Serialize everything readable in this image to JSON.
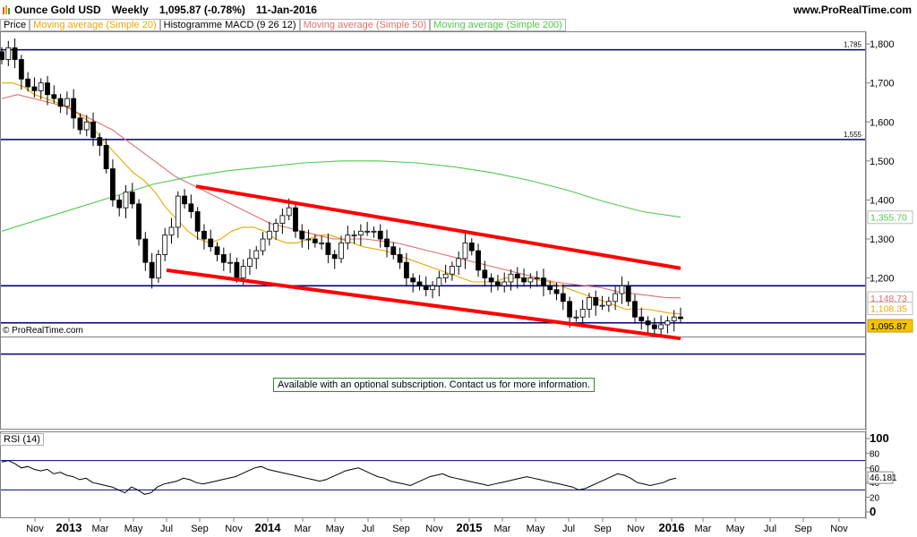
{
  "header": {
    "instrument": "Ounce Gold USD",
    "period": "Weekly",
    "price_change": "1,095.87 (-0.78%)",
    "date": "11-Jan-2016",
    "site": "www.ProRealTime.com"
  },
  "legend": [
    {
      "label": "Price",
      "color": "#000000"
    },
    {
      "label": "Moving average (Simple 20)",
      "color": "#e8a800"
    },
    {
      "label": "Histogramme MACD (9 26 12)",
      "color": "#000000"
    },
    {
      "label": "Moving average (Simple 50)",
      "color": "#d9716f"
    },
    {
      "label": "Moving average (Simple 200)",
      "color": "#4fc84f"
    }
  ],
  "copyright": "© ProRealTime.com",
  "subscription_note": "Available with an optional subscription. Contact us for more information.",
  "rsi_label": "RSI (14)",
  "price_badges": {
    "ma200": "1,355.70",
    "ma50": "1,148.73",
    "ma20": "1,108.35",
    "last": "1,095.87"
  },
  "level_labels": [
    "1,785",
    "1,555"
  ],
  "rsi_value_label": "46.181",
  "chart_data": [
    {
      "type": "candlestick",
      "ylim": [
        1050,
        1830
      ],
      "y_ticks": [
        "1,800",
        "1,700",
        "1,600",
        "1,500",
        "1,400",
        "1,300",
        "1,200"
      ],
      "x_ticks": [
        "Nov",
        "2013",
        "Mar",
        "May",
        "Jul",
        "Sep",
        "Nov",
        "2014",
        "Mar",
        "May",
        "Jul",
        "Sep",
        "Nov",
        "2015",
        "Mar",
        "May",
        "Jul",
        "Sep",
        "Nov",
        "2016",
        "Mar",
        "May",
        "Jul",
        "Sep",
        "Nov"
      ],
      "horizontal_levels": [
        1785,
        1555,
        1180,
        1085,
        1005
      ],
      "channel": {
        "upper": [
          [
            "2013-08",
            1435
          ],
          [
            "2016-01",
            1225
          ]
        ],
        "lower": [
          [
            "2013-07",
            1220
          ],
          [
            "2016-01",
            1045
          ]
        ]
      },
      "close": [
        1760,
        1790,
        1760,
        1710,
        1690,
        1680,
        1700,
        1670,
        1660,
        1640,
        1660,
        1610,
        1580,
        1600,
        1560,
        1540,
        1480,
        1400,
        1380,
        1420,
        1390,
        1300,
        1240,
        1200,
        1260,
        1310,
        1330,
        1410,
        1390,
        1370,
        1320,
        1300,
        1280,
        1260,
        1240,
        1240,
        1200,
        1230,
        1250,
        1270,
        1300,
        1320,
        1340,
        1360,
        1380,
        1320,
        1300,
        1300,
        1290,
        1290,
        1260,
        1250,
        1290,
        1310,
        1310,
        1320,
        1320,
        1320,
        1300,
        1280,
        1260,
        1240,
        1200,
        1190,
        1180,
        1170,
        1180,
        1200,
        1210,
        1230,
        1250,
        1290,
        1270,
        1220,
        1200,
        1190,
        1180,
        1190,
        1210,
        1200,
        1190,
        1200,
        1200,
        1180,
        1170,
        1160,
        1140,
        1100,
        1100,
        1120,
        1150,
        1130,
        1130,
        1140,
        1160,
        1180,
        1140,
        1100,
        1090,
        1080,
        1070,
        1080,
        1090,
        1100,
        1096
      ],
      "series": [
        {
          "name": "Moving average (Simple 20)",
          "values": [
            1700,
            1700,
            1690,
            1670,
            1660,
            1650,
            1640,
            1620,
            1600,
            1560,
            1530,
            1500,
            1470,
            1450,
            1420,
            1380,
            1350,
            1320,
            1300,
            1290,
            1300,
            1320,
            1330,
            1330,
            1320,
            1300,
            1290,
            1290,
            1300,
            1310,
            1310,
            1300,
            1290,
            1280,
            1275,
            1270,
            1260,
            1250,
            1240,
            1230,
            1220,
            1210,
            1200,
            1190,
            1190,
            1190,
            1200,
            1200,
            1200,
            1195,
            1190,
            1180,
            1170,
            1160,
            1150,
            1140,
            1130,
            1120,
            1120,
            1120,
            1115,
            1110,
            1108
          ]
        },
        {
          "name": "Moving average (Simple 50)",
          "values": [
            1660,
            1670,
            1660,
            1650,
            1640,
            1620,
            1600,
            1580,
            1550,
            1520,
            1490,
            1460,
            1440,
            1420,
            1400,
            1380,
            1360,
            1340,
            1330,
            1320,
            1310,
            1300,
            1300,
            1300,
            1295,
            1290,
            1280,
            1270,
            1260,
            1250,
            1240,
            1230,
            1220,
            1210,
            1200,
            1190,
            1185,
            1180,
            1175,
            1165,
            1160,
            1155,
            1150,
            1149
          ]
        },
        {
          "name": "Moving average (Simple 200)",
          "values": [
            1320,
            1350,
            1380,
            1410,
            1440,
            1460,
            1475,
            1485,
            1495,
            1500,
            1500,
            1495,
            1485,
            1470,
            1450,
            1425,
            1395,
            1370,
            1356
          ]
        }
      ]
    },
    {
      "type": "line",
      "title": "RSI (14)",
      "ylim": [
        0,
        100
      ],
      "y_ticks": [
        "100",
        "80",
        "60",
        "40",
        "20",
        "0"
      ],
      "reference_lines": [
        70,
        30
      ],
      "values": [
        68,
        70,
        66,
        60,
        62,
        58,
        56,
        58,
        52,
        54,
        50,
        48,
        44,
        46,
        40,
        38,
        36,
        34,
        30,
        26,
        34,
        30,
        24,
        26,
        34,
        38,
        40,
        42,
        46,
        44,
        40,
        38,
        40,
        42,
        44,
        46,
        48,
        52,
        56,
        60,
        62,
        58,
        56,
        54,
        52,
        50,
        48,
        46,
        44,
        42,
        44,
        48,
        52,
        56,
        58,
        60,
        56,
        52,
        48,
        46,
        42,
        40,
        38,
        36,
        40,
        44,
        48,
        50,
        52,
        48,
        46,
        44,
        42,
        40,
        38,
        36,
        38,
        40,
        42,
        44,
        46,
        48,
        46,
        44,
        42,
        40,
        38,
        36,
        34,
        30,
        32,
        36,
        40,
        44,
        48,
        52,
        50,
        46,
        40,
        38,
        36,
        38,
        40,
        44,
        46
      ]
    }
  ]
}
